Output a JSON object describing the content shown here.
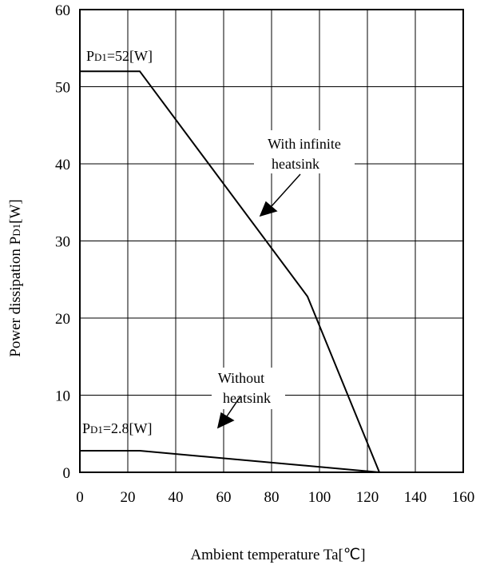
{
  "chart_data": {
    "type": "line",
    "xlabel": "Ambient temperature Ta[℃]",
    "ylabel": "Power dissipation P",
    "ylabel_sub": "D1",
    "ylabel_suffix": "[W]",
    "xlim": [
      0,
      160
    ],
    "ylim": [
      0,
      60
    ],
    "xticks": [
      "0",
      "20",
      "40",
      "60",
      "80",
      "100",
      "120",
      "140",
      "160"
    ],
    "yticks": [
      "0",
      "10",
      "20",
      "30",
      "40",
      "50",
      "60"
    ],
    "grid": true,
    "series": [
      {
        "x": [
          0,
          25,
          95,
          125,
          160
        ],
        "y": [
          52,
          52,
          22.8,
          0,
          0
        ]
      },
      {
        "x": [
          0,
          25,
          125
        ],
        "y": [
          2.8,
          2.8,
          0
        ]
      }
    ],
    "annotations": {
      "pd_high": {
        "prefix": "P",
        "sub": "D1",
        "suffix": "=52[W]"
      },
      "pd_low": {
        "prefix": "P",
        "sub": "D1",
        "suffix": "=2.8[W]"
      },
      "infinite_line1": "With infinite",
      "infinite_line2": "heatsink",
      "without_line1": "Without",
      "without_line2": "heatsink"
    }
  }
}
